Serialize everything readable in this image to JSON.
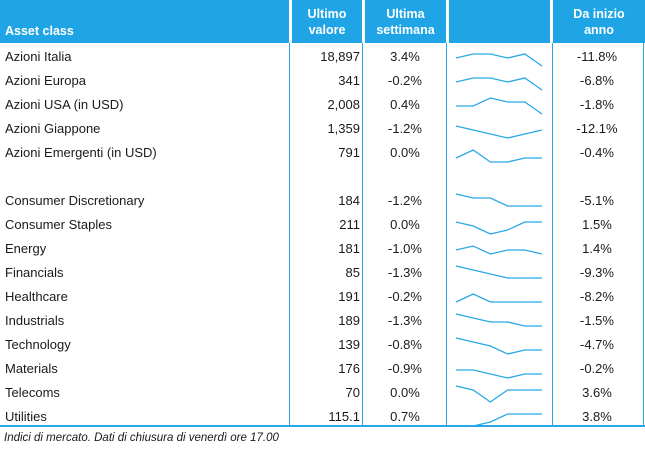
{
  "header": {
    "asset_class": "Asset class",
    "last_value": [
      "Ultimo",
      "valore"
    ],
    "last_week": [
      "Ultima",
      "settimana"
    ],
    "ytd": [
      "Da inizio",
      "anno"
    ]
  },
  "rows": [
    {
      "name": "Azioni Italia",
      "value": "18,897",
      "week": "3.4%",
      "ytd": "-11.8%",
      "trend": [
        3,
        4,
        4,
        3,
        4,
        1
      ]
    },
    {
      "name": "Azioni Europa",
      "value": "341",
      "week": "-0.2%",
      "ytd": "-6.8%",
      "trend": [
        3,
        4,
        4,
        3,
        4,
        1
      ]
    },
    {
      "name": "Azioni USA (in USD)",
      "value": "2,008",
      "week": "0.4%",
      "ytd": "-1.8%",
      "trend": [
        3,
        3,
        5,
        4,
        4,
        1
      ]
    },
    {
      "name": "Azioni Giappone",
      "value": "1,359",
      "week": "-1.2%",
      "ytd": "-12.1%",
      "trend": [
        4,
        3,
        2,
        1,
        2,
        3
      ]
    },
    {
      "name": "Azioni Emergenti (in USD)",
      "value": "791",
      "week": "0.0%",
      "ytd": "-0.4%",
      "trend": [
        2,
        4,
        1,
        1,
        2,
        2
      ]
    },
    {
      "name": "Consumer Discretionary",
      "value": "184",
      "week": "-1.2%",
      "ytd": "-5.1%",
      "trend": [
        5,
        4,
        4,
        2,
        2,
        2
      ]
    },
    {
      "name": "Consumer Staples",
      "value": "211",
      "week": "0.0%",
      "ytd": "1.5%",
      "trend": [
        4,
        3,
        1,
        2,
        4,
        4
      ]
    },
    {
      "name": "Energy",
      "value": "181",
      "week": "-1.0%",
      "ytd": "1.4%",
      "trend": [
        3,
        4,
        2,
        3,
        3,
        2
      ]
    },
    {
      "name": "Financials",
      "value": "85",
      "week": "-1.3%",
      "ytd": "-9.3%",
      "trend": [
        5,
        4,
        3,
        2,
        2,
        2
      ]
    },
    {
      "name": "Healthcare",
      "value": "191",
      "week": "-0.2%",
      "ytd": "-8.2%",
      "trend": [
        2,
        4,
        2,
        2,
        2,
        2
      ]
    },
    {
      "name": "Industrials",
      "value": "189",
      "week": "-1.3%",
      "ytd": "-1.5%",
      "trend": [
        5,
        4,
        3,
        3,
        2,
        2
      ]
    },
    {
      "name": "Technology",
      "value": "139",
      "week": "-0.8%",
      "ytd": "-4.7%",
      "trend": [
        5,
        4,
        3,
        1,
        2,
        2
      ]
    },
    {
      "name": "Materials",
      "value": "176",
      "week": "-0.9%",
      "ytd": "-0.2%",
      "trend": [
        3,
        3,
        2,
        1,
        2,
        2
      ]
    },
    {
      "name": "Telecoms",
      "value": "70",
      "week": "0.0%",
      "ytd": "3.6%",
      "trend": [
        5,
        4,
        1,
        4,
        4,
        4
      ]
    },
    {
      "name": "Utilities",
      "value": "115.1",
      "week": "0.7%",
      "ytd": "3.8%",
      "trend": [
        1,
        1,
        2,
        4,
        4,
        4
      ]
    }
  ],
  "footnote": "Indici di mercato. Dati di chiusura di venerdì ore 17.00",
  "colors": {
    "header_bg": "#1fa5e6",
    "line": "#2aa7e5",
    "spark": "#29a8e6"
  }
}
